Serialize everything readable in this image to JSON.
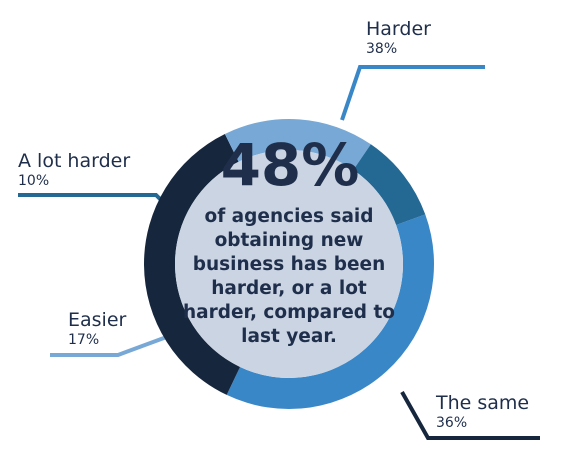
{
  "chart_data": {
    "type": "pie",
    "variant": "donut",
    "slices": [
      {
        "label": "Harder",
        "value": 38,
        "value_label": "38%",
        "color": "#3a87c8"
      },
      {
        "label": "The same",
        "value": 36,
        "value_label": "36%",
        "color": "#16263d"
      },
      {
        "label": "Easier",
        "value": 17,
        "value_label": "17%",
        "color": "#78a9d6"
      },
      {
        "label": "A lot harder",
        "value": 10,
        "value_label": "10%",
        "color": "#246894"
      }
    ],
    "center": {
      "headline": "48%",
      "caption": "of agencies said obtaining new business has been harder, or a lot harder, compared to last year."
    },
    "colors": {
      "center_fill": "#cbd4e3",
      "text": "#1f2f4b"
    }
  }
}
